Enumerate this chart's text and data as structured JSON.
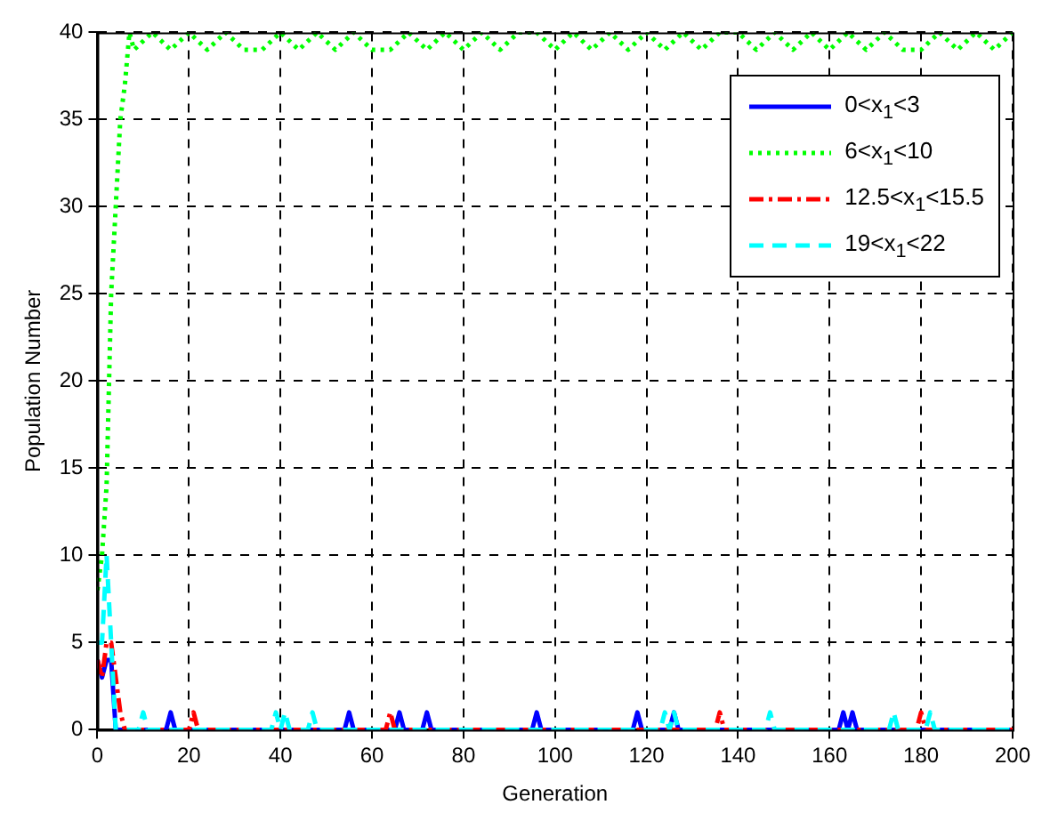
{
  "chart_data": {
    "type": "line",
    "xlabel": "Generation",
    "ylabel": "Population Number",
    "xlim": [
      0,
      200
    ],
    "xticks": [
      0,
      20,
      40,
      60,
      80,
      100,
      120,
      140,
      160,
      180,
      200
    ],
    "ylim": [
      0,
      40
    ],
    "yticks": [
      0,
      5,
      10,
      15,
      20,
      25,
      30,
      35,
      40
    ],
    "grid": true,
    "legend": "top right",
    "marker": "none",
    "series": [
      {
        "name": "0<x$_{1}$<3",
        "color": "#0000ff",
        "line_style": "solid",
        "x": [
          0,
          1,
          2,
          3,
          4,
          15,
          16,
          17,
          54,
          55,
          56,
          65,
          66,
          67,
          71,
          72,
          73,
          95,
          96,
          97,
          117,
          118,
          119,
          125,
          126,
          127,
          162,
          163,
          164,
          165,
          166,
          200
        ],
        "values": [
          4,
          3,
          4,
          4,
          0,
          0,
          1,
          0,
          0,
          1,
          0,
          0,
          1,
          0,
          0,
          1,
          0,
          0,
          1,
          0,
          0,
          1,
          0,
          0,
          1,
          0,
          0,
          1,
          0,
          1,
          0,
          0
        ]
      },
      {
        "name": "6<x$_{1}$<10",
        "color": "#00ff00",
        "line_style": "dotted",
        "x": [
          0,
          1,
          2,
          3,
          4,
          5,
          6,
          7,
          8,
          12,
          16,
          20,
          24,
          28,
          32,
          36,
          40,
          44,
          48,
          52,
          56,
          60,
          64,
          68,
          72,
          76,
          80,
          84,
          88,
          92,
          96,
          100,
          104,
          108,
          112,
          116,
          120,
          124,
          128,
          132,
          136,
          140,
          144,
          148,
          152,
          156,
          160,
          164,
          168,
          172,
          176,
          180,
          184,
          188,
          192,
          196,
          200
        ],
        "values": [
          8,
          10,
          14,
          25,
          30,
          35,
          37,
          40,
          39,
          40,
          39,
          40,
          39,
          40,
          39,
          39,
          40,
          39,
          40,
          39,
          40,
          39,
          39,
          40,
          39,
          40,
          39,
          40,
          39,
          40,
          40,
          39,
          40,
          39,
          40,
          39,
          40,
          39,
          40,
          39,
          40,
          40,
          39,
          40,
          39,
          40,
          39,
          40,
          39,
          40,
          39,
          39,
          40,
          39,
          40,
          39,
          40
        ]
      },
      {
        "name": "12.5<x$_{1}$<15.5",
        "color": "#ff0000",
        "line_style": "dashdot",
        "x": [
          0,
          1,
          2,
          3,
          4,
          5,
          6,
          20,
          21,
          22,
          63,
          64,
          65,
          135,
          136,
          137,
          179,
          180,
          181,
          200
        ],
        "values": [
          4,
          3,
          5,
          5,
          3,
          1,
          0,
          0,
          1,
          0,
          0,
          1,
          0,
          0,
          1,
          0,
          0,
          1,
          0,
          0
        ]
      },
      {
        "name": "19<x$_{1}$<22",
        "color": "#00ffff",
        "line_style": "dashed",
        "x": [
          0,
          1,
          2,
          3,
          4,
          9,
          10,
          11,
          38,
          39,
          40,
          41,
          42,
          46,
          47,
          48,
          123,
          124,
          125,
          126,
          127,
          146,
          147,
          148,
          173,
          174,
          175,
          181,
          182,
          183,
          200
        ],
        "values": [
          5,
          5,
          10,
          5,
          0,
          0,
          1,
          0,
          0,
          1,
          0,
          1,
          0,
          0,
          1,
          0,
          0,
          1,
          0,
          1,
          0,
          0,
          1,
          0,
          0,
          1,
          0,
          0,
          1,
          0,
          0
        ]
      }
    ]
  }
}
